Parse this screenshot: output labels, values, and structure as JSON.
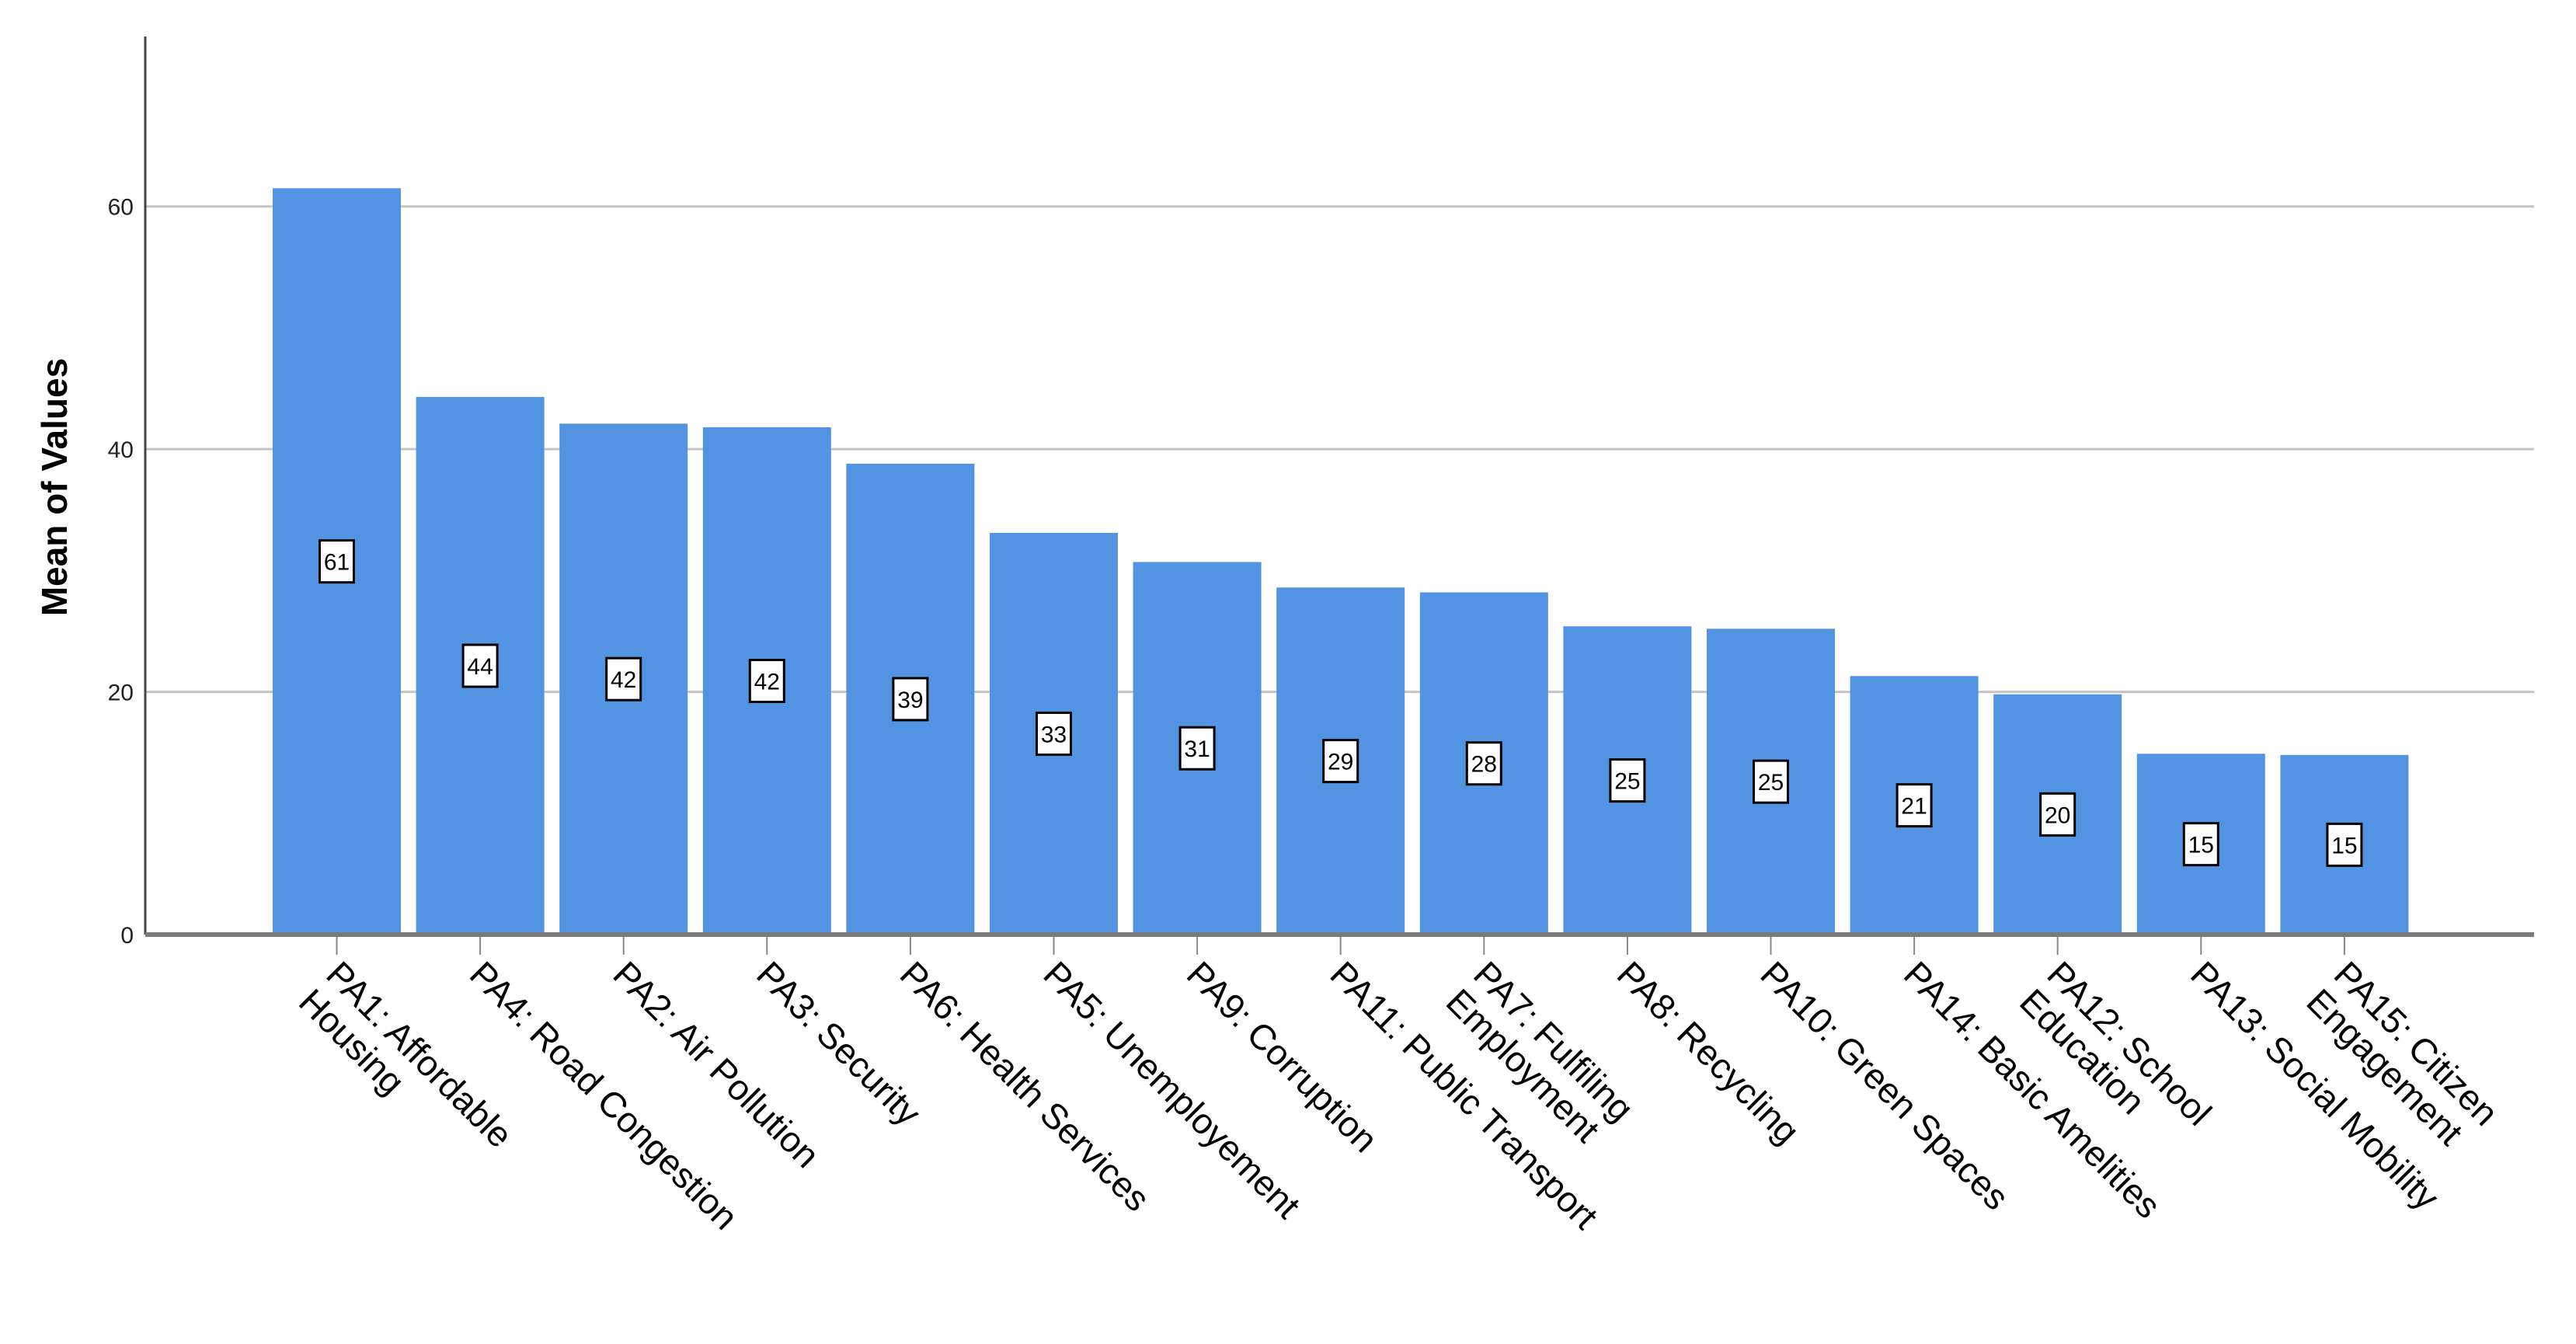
{
  "chart_data": {
    "type": "bar",
    "title": "",
    "xlabel": "",
    "ylabel": "Mean of Values",
    "ylim": [
      0,
      74
    ],
    "yticks": [
      0,
      20,
      40,
      60
    ],
    "grid": true,
    "bar_color": "#5294e2",
    "categories": [
      "PA1: Affordable\nHousing",
      "PA4: Road Congestion",
      "PA2: Air Pollution",
      "PA3: Security",
      "PA6: Health Services",
      "PA5: Unemployement",
      "PA9: Corruption",
      "PA11: Public Transport",
      "PA7: Fulfiling\nEmployment",
      "PA8: Recycling",
      "PA10: Green Spaces",
      "PA14: Basic Amelities",
      "PA12: School\nEducation",
      "PA13: Social Mobility",
      "PA15: Citizen\nEngagement"
    ],
    "values": [
      61.5,
      44.3,
      42.1,
      41.8,
      38.8,
      33.1,
      30.7,
      28.6,
      28.2,
      25.4,
      25.2,
      21.3,
      19.8,
      14.9,
      14.8
    ],
    "data_labels": [
      "61",
      "44",
      "42",
      "42",
      "39",
      "33",
      "31",
      "29",
      "28",
      "25",
      "25",
      "21",
      "20",
      "15",
      "15"
    ]
  }
}
